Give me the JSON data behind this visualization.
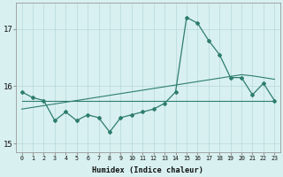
{
  "xlabel": "Humidex (Indice chaleur)",
  "x": [
    0,
    1,
    2,
    3,
    4,
    5,
    6,
    7,
    8,
    9,
    10,
    11,
    12,
    13,
    14,
    15,
    16,
    17,
    18,
    19,
    20,
    21,
    22,
    23
  ],
  "y_main": [
    15.9,
    15.8,
    15.75,
    15.4,
    15.55,
    15.4,
    15.5,
    15.45,
    15.2,
    15.45,
    15.5,
    15.55,
    15.6,
    15.7,
    15.9,
    17.2,
    17.1,
    16.8,
    16.55,
    16.15,
    16.15,
    15.85,
    16.05,
    15.75
  ],
  "y_trend1": [
    15.6,
    15.63,
    15.66,
    15.69,
    15.72,
    15.75,
    15.78,
    15.81,
    15.84,
    15.87,
    15.9,
    15.93,
    15.96,
    15.99,
    16.02,
    16.05,
    16.08,
    16.11,
    16.14,
    16.17,
    16.2,
    16.18,
    16.15,
    16.12
  ],
  "y_trend2": [
    15.75,
    15.75,
    15.75,
    15.75,
    15.75,
    15.75,
    15.75,
    15.75,
    15.75,
    15.75,
    15.75,
    15.75,
    15.75,
    15.75,
    15.75,
    15.75,
    15.75,
    15.75,
    15.75,
    15.75,
    15.75,
    15.75,
    15.75,
    15.75
  ],
  "line_color": "#2e7d6e",
  "bg_color": "#d8f0f0",
  "grid_color": "#b8d8d8",
  "yticks": [
    15,
    16,
    17
  ],
  "ylim": [
    14.85,
    17.45
  ],
  "xlim": [
    -0.5,
    23.5
  ]
}
